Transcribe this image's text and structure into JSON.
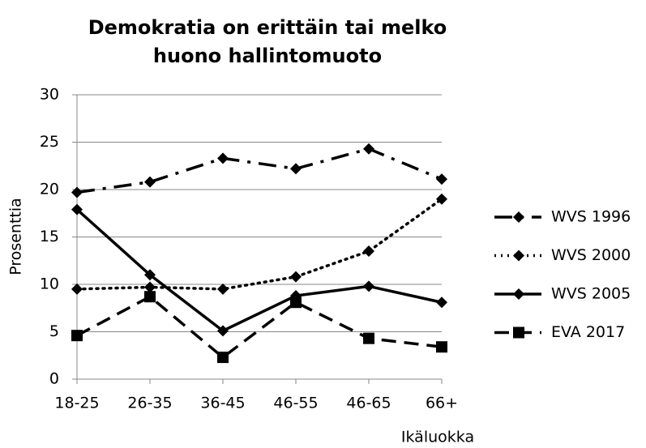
{
  "chart_data": {
    "type": "line",
    "title": "Demokratia on erittäin tai melko huono hallintomuoto",
    "x_label": "Ikäluokka",
    "y_label": "Prosenttia",
    "categories": [
      "18-25",
      "26-35",
      "36-45",
      "46-55",
      "46-65",
      "66+"
    ],
    "series": [
      {
        "name": "WVS 1996",
        "color": "#000000",
        "line_style": "dashdot",
        "marker": "diamond",
        "values": [
          19.7,
          20.8,
          23.3,
          22.2,
          24.3,
          21.1
        ]
      },
      {
        "name": "WVS 2000",
        "color": "#000000",
        "line_style": "dotted",
        "marker": "diamond",
        "values": [
          9.5,
          9.7,
          9.5,
          10.8,
          13.5,
          19.0
        ]
      },
      {
        "name": "WVS 2005",
        "color": "#000000",
        "line_style": "solid",
        "marker": "diamond",
        "values": [
          17.9,
          11.0,
          5.1,
          8.8,
          9.8,
          8.1
        ]
      },
      {
        "name": "EVA 2017",
        "color": "#000000",
        "line_style": "dashed",
        "marker": "square",
        "values": [
          4.6,
          8.7,
          2.3,
          8.1,
          4.3,
          3.4
        ]
      }
    ],
    "ylim": [
      0,
      30
    ],
    "yticks": [
      0,
      5,
      10,
      15,
      20,
      25,
      30
    ],
    "grid": true,
    "legend": "right"
  }
}
